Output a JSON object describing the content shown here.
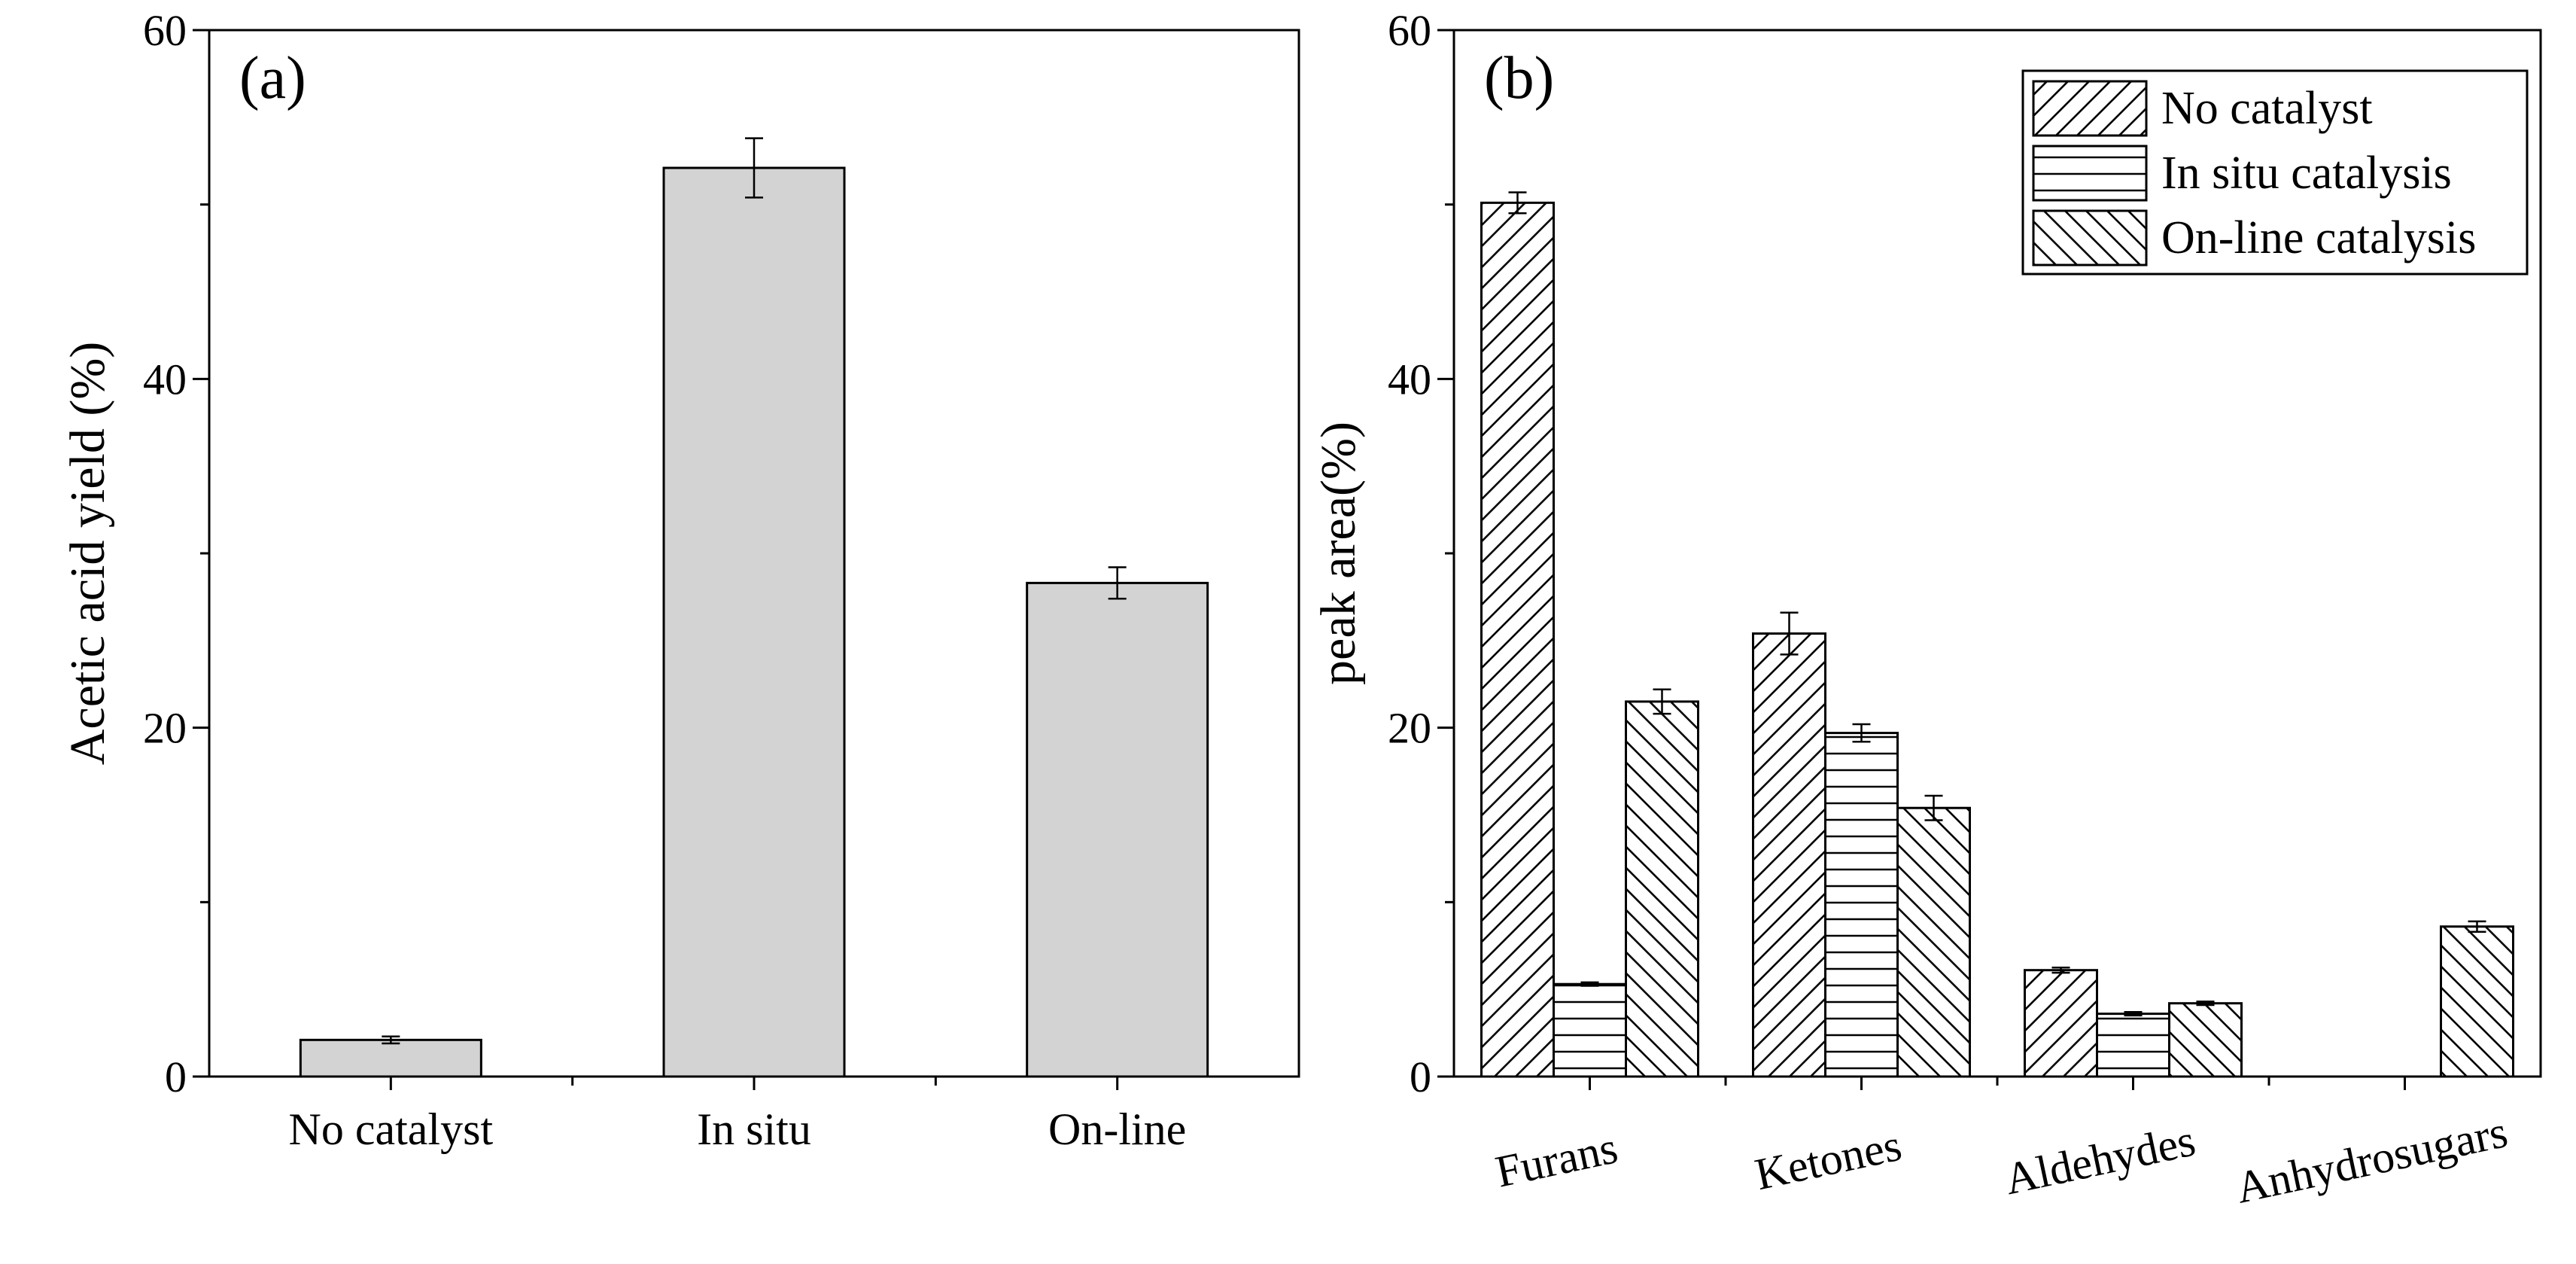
{
  "chart_data": [
    {
      "panel_label": "(a)",
      "type": "bar",
      "categories": [
        "No catalyst",
        "In situ",
        "On-line"
      ],
      "values": [
        2.1,
        52.1,
        28.3
      ],
      "errors": [
        0.2,
        1.7,
        0.9
      ],
      "fill_color": "#d3d3d3",
      "title": "",
      "xlabel": "",
      "ylabel": "Acetic acid yield (%)",
      "ylim": [
        0,
        60
      ],
      "yticks": [
        0,
        20,
        40,
        60
      ],
      "grid": false
    },
    {
      "panel_label": "(b)",
      "type": "bar",
      "categories": [
        "Furans",
        "Ketones",
        "Aldehydes",
        "Anhydrosugars"
      ],
      "series": [
        {
          "name": "No catalyst",
          "pattern": "diag-up",
          "values": [
            50.1,
            25.4,
            6.1,
            0
          ],
          "errors": [
            0.6,
            1.2,
            0.15,
            0
          ]
        },
        {
          "name": "In situ catalysis",
          "pattern": "horizontal",
          "values": [
            5.3,
            19.7,
            3.6,
            0
          ],
          "errors": [
            0.1,
            0.5,
            0.1,
            0
          ]
        },
        {
          "name": "On-line catalysis",
          "pattern": "diag-down",
          "values": [
            21.5,
            15.4,
            4.2,
            8.6
          ],
          "errors": [
            0.7,
            0.7,
            0.1,
            0.3
          ]
        }
      ],
      "title": "",
      "xlabel": "",
      "ylabel": "peak area(%)",
      "ylim": [
        0,
        60
      ],
      "yticks": [
        0,
        20,
        40,
        60
      ],
      "legend_position": "top-right",
      "grid": false
    }
  ]
}
